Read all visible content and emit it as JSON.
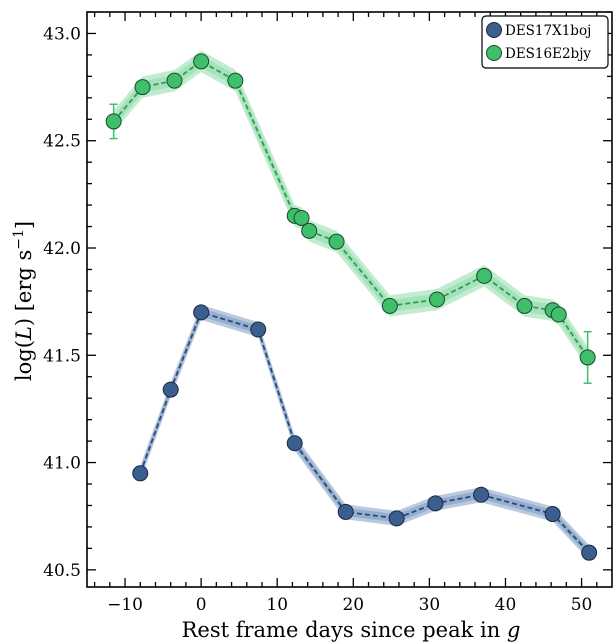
{
  "chart_data": {
    "type": "line",
    "title": "",
    "xlabel": "Rest frame days since peak in ",
    "xlabel_italic": "g",
    "ylabel_prefix": "log(",
    "ylabel_italic": "L",
    "ylabel_mid": ") [erg s",
    "ylabel_sup": "−1",
    "ylabel_suffix": "]",
    "xlim": [
      -15,
      54
    ],
    "ylim": [
      40.42,
      43.1
    ],
    "x_ticks": [
      -10,
      0,
      10,
      20,
      30,
      40,
      50
    ],
    "x_tick_labels": [
      "−10",
      "0",
      "10",
      "20",
      "30",
      "40",
      "50"
    ],
    "y_ticks": [
      40.5,
      41.0,
      41.5,
      42.0,
      42.5,
      43.0
    ],
    "y_tick_labels": [
      "40.5",
      "41.0",
      "41.5",
      "42.0",
      "42.5",
      "43.0"
    ],
    "grid": false,
    "legend_position": "top-right",
    "series": [
      {
        "name": "DES17X1boj",
        "color": "#3a5f8f",
        "band_color": "#7f9dc4",
        "band_halfwidth": 0.035,
        "x": [
          -8,
          -4,
          0,
          7.5,
          12.3,
          19,
          25.7,
          30.8,
          36.8,
          46.2,
          51
        ],
        "y": [
          40.95,
          41.34,
          41.7,
          41.62,
          41.09,
          40.77,
          40.74,
          40.81,
          40.85,
          40.76,
          40.58
        ],
        "yerr": [
          0.03,
          0.02,
          0.02,
          0.02,
          0.02,
          0.02,
          0.02,
          0.02,
          0.02,
          0.02,
          0.03
        ]
      },
      {
        "name": "DES16E2bjy",
        "color": "#3fbe6b",
        "band_color": "#8fdcaa",
        "band_halfwidth": 0.05,
        "x": [
          -11.5,
          -7.7,
          -3.5,
          0,
          4.5,
          12.3,
          13.2,
          14.2,
          17.8,
          24.8,
          31,
          37.2,
          42.5,
          46.2,
          47,
          50.8
        ],
        "y": [
          42.59,
          42.75,
          42.78,
          42.87,
          42.78,
          42.15,
          42.14,
          42.08,
          42.03,
          41.73,
          41.76,
          41.87,
          41.73,
          41.71,
          41.69,
          41.49
        ],
        "yerr": [
          0.08,
          0.03,
          0.02,
          0.02,
          0.02,
          0.02,
          0.02,
          0.02,
          0.02,
          0.02,
          0.02,
          0.02,
          0.02,
          0.02,
          0.02,
          0.12
        ]
      }
    ]
  }
}
